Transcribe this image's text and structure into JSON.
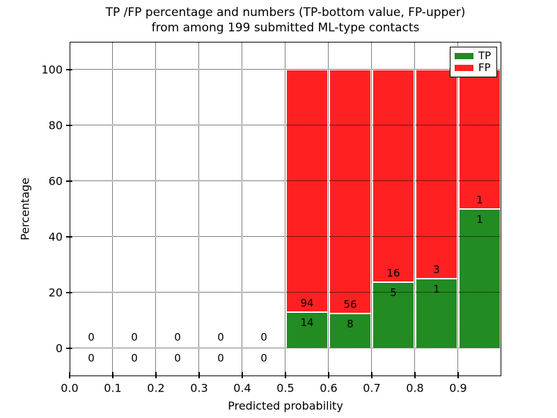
{
  "figure": {
    "title_line1": "TP /FP percentage and numbers (TP-bottom value, FP-upper)",
    "title_line2": "from among 199 submitted ML-type contacts",
    "xlabel": "Predicted probability",
    "ylabel": "Percentage"
  },
  "legend": {
    "position": "upper right",
    "items": [
      {
        "label": "TP",
        "color": "#228b22"
      },
      {
        "label": "FP",
        "color": "#ff2121"
      }
    ]
  },
  "chart_data": {
    "type": "bar",
    "stacked": true,
    "normalized": "each non-empty bin scaled to 100%",
    "title": "TP /FP percentage and numbers (TP-bottom value, FP-upper) from among 199 submitted ML-type contacts",
    "xlabel": "Predicted probability",
    "ylabel": "Percentage",
    "total_contacts": 199,
    "bin_width": 0.1,
    "bin_starts": [
      0.0,
      0.1,
      0.2,
      0.3,
      0.4,
      0.5,
      0.6,
      0.7,
      0.8,
      0.9
    ],
    "series": [
      {
        "name": "TP",
        "color": "#228b22",
        "counts": [
          0,
          0,
          0,
          0,
          0,
          14,
          8,
          5,
          1,
          1
        ]
      },
      {
        "name": "FP",
        "color": "#ff2121",
        "counts": [
          0,
          0,
          0,
          0,
          0,
          94,
          56,
          16,
          3,
          1
        ]
      }
    ],
    "tp_percent_of_bin": [
      null,
      null,
      null,
      null,
      null,
      12.96,
      12.5,
      23.81,
      25.0,
      50.0
    ],
    "xlim": [
      0.0,
      1.0
    ],
    "ylim": [
      -10,
      110
    ],
    "xtick_labels": [
      "0.0",
      "0.1",
      "0.2",
      "0.3",
      "0.4",
      "0.5",
      "0.6",
      "0.7",
      "0.8",
      "0.9"
    ],
    "ytick_values": [
      0,
      20,
      40,
      60,
      80,
      100
    ],
    "grid": "dotted, drawn above bars",
    "bar_edge_color": "#ffffff",
    "legend_position": "upper right"
  },
  "colors": {
    "tp_green": "#228b22",
    "fp_red": "#ff2121",
    "text": "#000000",
    "background": "#ffffff",
    "grid": "#000000"
  }
}
